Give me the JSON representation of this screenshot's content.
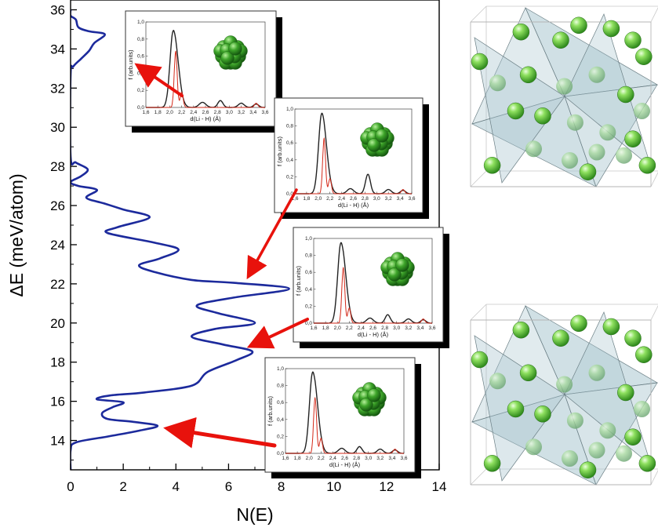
{
  "chart_data": {
    "type": "line",
    "xlabel": "N(E)",
    "ylabel": "ΔE (meV/atom)",
    "xlim": [
      0,
      14
    ],
    "ylim": [
      12.5,
      36.5
    ],
    "x_ticks": [
      "0",
      "2",
      "4",
      "6",
      "8",
      "10",
      "12",
      "14"
    ],
    "y_ticks": [
      "14",
      "16",
      "18",
      "20",
      "22",
      "24",
      "26",
      "28",
      "30",
      "32",
      "34",
      "36"
    ],
    "series": [
      {
        "color": "#1c2a9c",
        "points": [
          [
            0.0,
            12.5
          ],
          [
            0.0,
            13.5
          ],
          [
            0.2,
            13.9
          ],
          [
            1.4,
            14.2
          ],
          [
            2.6,
            14.5
          ],
          [
            3.3,
            14.75
          ],
          [
            2.4,
            14.95
          ],
          [
            1.4,
            15.1
          ],
          [
            1.2,
            15.4
          ],
          [
            1.6,
            15.7
          ],
          [
            2.0,
            15.95
          ],
          [
            1.0,
            16.1
          ],
          [
            1.5,
            16.3
          ],
          [
            2.8,
            16.45
          ],
          [
            4.6,
            16.8
          ],
          [
            5.2,
            17.5
          ],
          [
            6.3,
            18.1
          ],
          [
            6.9,
            18.55
          ],
          [
            5.8,
            18.9
          ],
          [
            4.6,
            19.3
          ],
          [
            5.5,
            19.7
          ],
          [
            7.0,
            20.0
          ],
          [
            5.6,
            20.5
          ],
          [
            4.8,
            20.9
          ],
          [
            6.2,
            21.3
          ],
          [
            8.3,
            21.75
          ],
          [
            6.2,
            22.05
          ],
          [
            4.6,
            22.2
          ],
          [
            3.2,
            22.6
          ],
          [
            2.6,
            22.95
          ],
          [
            3.4,
            23.3
          ],
          [
            4.1,
            23.75
          ],
          [
            3.2,
            24.1
          ],
          [
            1.4,
            24.6
          ],
          [
            1.8,
            24.9
          ],
          [
            3.0,
            25.4
          ],
          [
            2.0,
            25.8
          ],
          [
            1.3,
            26.1
          ],
          [
            0.6,
            26.4
          ],
          [
            1.0,
            26.8
          ],
          [
            0.3,
            27.0
          ],
          [
            0.0,
            27.2
          ],
          [
            0.4,
            27.5
          ],
          [
            0.65,
            27.85
          ],
          [
            0.2,
            28.2
          ],
          [
            0.0,
            28.5
          ],
          [
            0.0,
            32.7
          ],
          [
            0.1,
            33.1
          ],
          [
            0.4,
            33.5
          ],
          [
            0.7,
            33.9
          ],
          [
            0.9,
            34.3
          ],
          [
            1.3,
            34.75
          ],
          [
            0.7,
            34.9
          ],
          [
            0.3,
            35.1
          ],
          [
            0.2,
            35.5
          ],
          [
            0.0,
            35.7
          ],
          [
            0.0,
            36.0
          ]
        ]
      }
    ]
  },
  "insets": {
    "y_axis_label": "f (arb.units)",
    "x_axis_label": "d(Li - H) (Å)",
    "y_ticks": [
      "0,0",
      "0,2",
      "0,4",
      "0,6",
      "0,8",
      "1,0"
    ],
    "x_ticks": [
      "1,6",
      "1,8",
      "2,0",
      "2,2",
      "2,4",
      "2,6",
      "2,8",
      "3,0",
      "3,2",
      "3,4",
      "3,6"
    ]
  },
  "colors": {
    "dos_curve": "#1c2a9c",
    "arrow": "#e8120c",
    "rdf_black": "#222222",
    "rdf_red": "#d42a1a",
    "cluster_green": "#2e8b22",
    "atom_green": "#6fd04a",
    "polyhedron_fill": "#a9c6cf"
  },
  "icons": {
    "cluster": "green-cluster-icon",
    "structure": "polyhedron-structure-icon"
  }
}
